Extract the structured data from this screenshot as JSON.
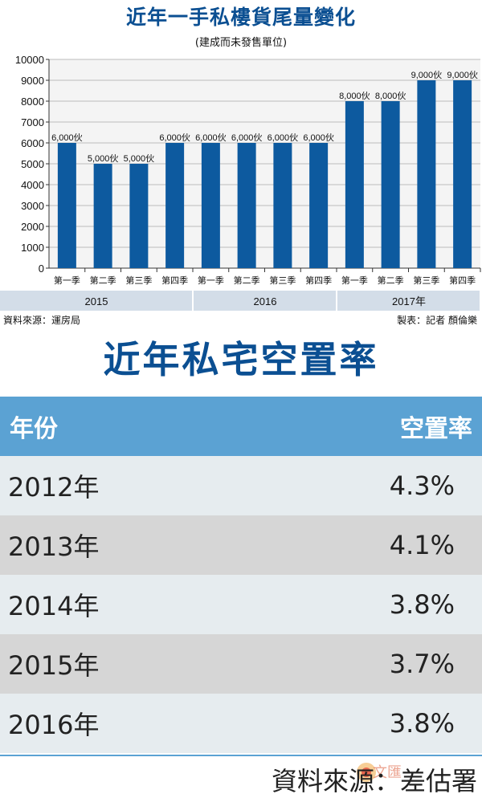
{
  "chart_data": {
    "type": "bar",
    "title": "近年一手私樓貨尾量變化",
    "subtitle": "(建成而未發售單位)",
    "categories": [
      "第一季",
      "第二季",
      "第三季",
      "第四季",
      "第一季",
      "第二季",
      "第三季",
      "第四季",
      "第一季",
      "第二季",
      "第三季",
      "第四季"
    ],
    "years": [
      "2015",
      "2016",
      "2017年"
    ],
    "values": [
      6000,
      5000,
      5000,
      6000,
      6000,
      6000,
      6000,
      6000,
      8000,
      8000,
      9000,
      9000
    ],
    "data_labels": [
      "6,000伙",
      "5,000伙",
      "5,000伙",
      "6,000伙",
      "6,000伙",
      "6,000伙",
      "6,000伙",
      "6,000伙",
      "8,000伙",
      "8,000伙",
      "9,000伙",
      "9,000伙"
    ],
    "yticks": [
      "0",
      "1000",
      "2000",
      "3000",
      "4000",
      "5000",
      "6000",
      "7000",
      "8000",
      "9000",
      "10000"
    ],
    "ylim": [
      0,
      10000
    ],
    "grid": true,
    "bar_color": "#0d5a9f",
    "source": "資料來源：運房局",
    "credit": "製表：記者 顏倫樂"
  },
  "table": {
    "title": "近年私宅空置率",
    "header_year": "年份",
    "header_rate": "空置率",
    "rows": [
      {
        "year": "2012年",
        "rate": "4.3%"
      },
      {
        "year": "2013年",
        "rate": "4.1%"
      },
      {
        "year": "2014年",
        "rate": "3.8%"
      },
      {
        "year": "2015年",
        "rate": "3.7%"
      },
      {
        "year": "2016年",
        "rate": "3.8%"
      }
    ],
    "source": "資料來源：差估署",
    "header_color": "#5ba2d3"
  }
}
